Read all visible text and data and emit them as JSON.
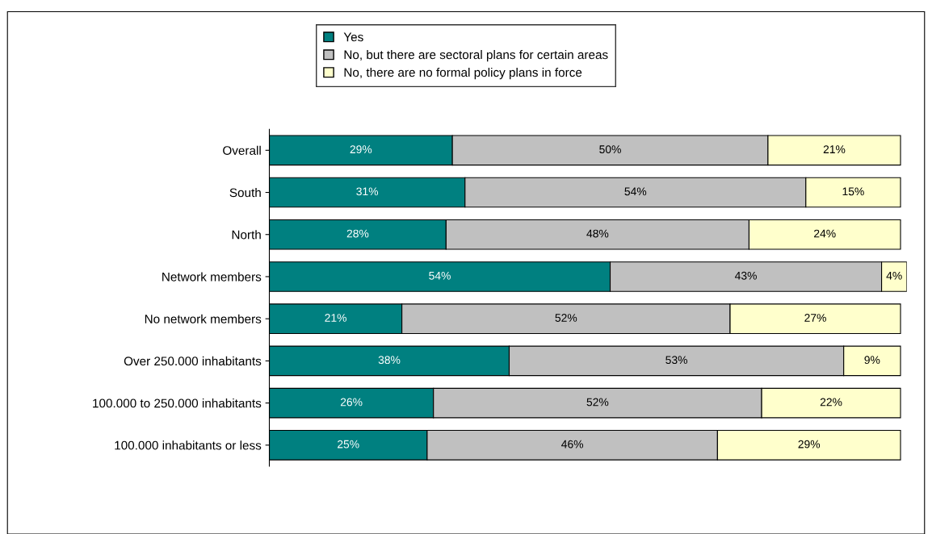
{
  "chart_data": {
    "type": "bar",
    "orientation": "horizontal",
    "stacked": true,
    "legend": "top",
    "grid": false,
    "categories": [
      "Overall",
      "South",
      "North",
      "Network members",
      "No network members",
      "Over 250.000 inhabitants",
      "100.000 to 250.000 inhabitants",
      "100.000 inhabitants or less"
    ],
    "series": [
      {
        "name": "Yes",
        "color": "#008080",
        "values": [
          29,
          31,
          28,
          54,
          21,
          38,
          26,
          25
        ],
        "value_labels": [
          "29%",
          "31%",
          "28%",
          "54%",
          "21%",
          "38%",
          "26%",
          "25%"
        ]
      },
      {
        "name": "No, but there are sectoral plans for certain areas",
        "color": "#c0c0c0",
        "values": [
          50,
          54,
          48,
          43,
          52,
          53,
          52,
          46
        ],
        "value_labels": [
          "50%",
          "54%",
          "48%",
          "43%",
          "52%",
          "53%",
          "52%",
          "46%"
        ]
      },
      {
        "name": "No, there are no formal policy plans in force",
        "color": "#ffffcc",
        "values": [
          21,
          15,
          24,
          4,
          27,
          9,
          22,
          29
        ],
        "value_labels": [
          "21%",
          "15%",
          "24%",
          "4%",
          "27%",
          "9%",
          "22%",
          "29%"
        ]
      }
    ]
  }
}
